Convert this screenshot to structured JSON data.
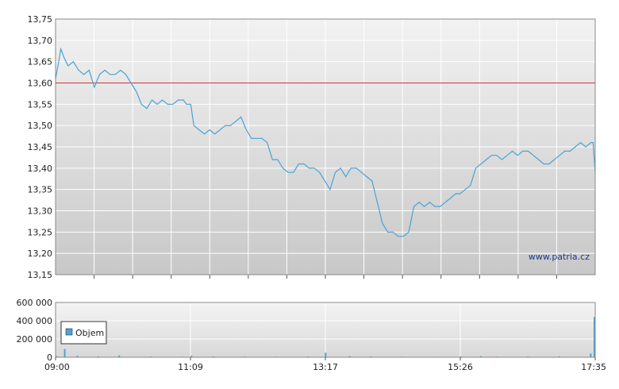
{
  "watermark": "www.patria.cz",
  "chart_data": [
    {
      "type": "line",
      "name": "price",
      "ylim": [
        13.15,
        13.75
      ],
      "yticks": [
        "13,75",
        "13,70",
        "13,65",
        "13,60",
        "13,55",
        "13,50",
        "13,45",
        "13,40",
        "13,35",
        "13,30",
        "13,25",
        "13,20",
        "13,15"
      ],
      "reference_line": {
        "value": 13.6,
        "color": "#cc3333"
      },
      "x_range": [
        "09:00",
        "17:35"
      ],
      "line_color": "#4aa3d4",
      "grid": true,
      "series": [
        {
          "x": [
            "09:00",
            "09:03",
            "09:05",
            "09:08",
            "09:12",
            "09:17",
            "09:22",
            "09:27",
            "09:32",
            "09:37",
            "09:42",
            "09:47",
            "09:52",
            "09:57",
            "10:02",
            "10:07",
            "10:12",
            "10:17",
            "10:22",
            "10:27",
            "10:32",
            "10:37",
            "10:42",
            "10:47",
            "10:52",
            "10:57",
            "11:02",
            "11:05",
            "11:09",
            "11:12",
            "11:17",
            "11:22",
            "11:27",
            "11:32",
            "11:37",
            "11:42",
            "11:47",
            "11:52",
            "11:57",
            "12:02",
            "12:07",
            "12:12",
            "12:17",
            "12:22",
            "12:27",
            "12:32",
            "12:37",
            "12:42",
            "12:47",
            "12:52",
            "12:57",
            "13:02",
            "13:07",
            "13:12",
            "13:17",
            "13:22",
            "13:27",
            "13:32",
            "13:37",
            "13:42",
            "13:47",
            "13:52",
            "13:57",
            "14:02",
            "14:07",
            "14:12",
            "14:17",
            "14:22",
            "14:27",
            "14:32",
            "14:37",
            "14:42",
            "14:47",
            "14:52",
            "14:57",
            "15:02",
            "15:07",
            "15:12",
            "15:17",
            "15:22",
            "15:26",
            "15:31",
            "15:36",
            "15:41",
            "15:46",
            "15:51",
            "15:56",
            "16:01",
            "16:06",
            "16:11",
            "16:16",
            "16:21",
            "16:26",
            "16:31",
            "16:36",
            "16:41",
            "16:46",
            "16:51",
            "16:56",
            "17:01",
            "17:06",
            "17:11",
            "17:16",
            "17:21",
            "17:26",
            "17:31",
            "17:33",
            "17:35"
          ],
          "values": [
            13.61,
            13.65,
            13.68,
            13.66,
            13.64,
            13.65,
            13.63,
            13.62,
            13.63,
            13.59,
            13.62,
            13.63,
            13.62,
            13.62,
            13.63,
            13.62,
            13.6,
            13.58,
            13.55,
            13.54,
            13.56,
            13.55,
            13.56,
            13.55,
            13.55,
            13.56,
            13.56,
            13.55,
            13.55,
            13.5,
            13.49,
            13.48,
            13.49,
            13.48,
            13.49,
            13.5,
            13.5,
            13.51,
            13.52,
            13.49,
            13.47,
            13.47,
            13.47,
            13.46,
            13.42,
            13.42,
            13.4,
            13.39,
            13.39,
            13.41,
            13.41,
            13.4,
            13.4,
            13.39,
            13.37,
            13.35,
            13.39,
            13.4,
            13.38,
            13.4,
            13.4,
            13.39,
            13.38,
            13.37,
            13.32,
            13.27,
            13.25,
            13.25,
            13.24,
            13.24,
            13.25,
            13.31,
            13.32,
            13.31,
            13.32,
            13.31,
            13.31,
            13.32,
            13.33,
            13.34,
            13.34,
            13.35,
            13.36,
            13.4,
            13.41,
            13.42,
            13.43,
            13.43,
            13.42,
            13.43,
            13.44,
            13.43,
            13.44,
            13.44,
            13.43,
            13.42,
            13.41,
            13.41,
            13.42,
            13.43,
            13.44,
            13.44,
            13.45,
            13.46,
            13.45,
            13.46,
            13.46,
            13.39
          ]
        }
      ]
    },
    {
      "type": "bar",
      "name": "volume",
      "legend": "Objem",
      "legend_color": "#4aa3d4",
      "ylim": [
        0,
        600000
      ],
      "yticks": [
        "600 000",
        "400 000",
        "200 000",
        "0"
      ],
      "xticks": [
        "09:00",
        "11:09",
        "13:17",
        "15:26",
        "17:35"
      ],
      "bar_color": "#4aa3d4",
      "grid": true,
      "series": [
        {
          "x": [
            "09:00",
            "09:08",
            "09:20",
            "09:40",
            "10:00",
            "10:30",
            "11:00",
            "11:09",
            "11:30",
            "12:00",
            "12:30",
            "13:00",
            "13:17",
            "13:40",
            "14:00",
            "14:30",
            "15:00",
            "15:26",
            "15:45",
            "16:00",
            "16:30",
            "17:00",
            "17:30",
            "17:35"
          ],
          "values": [
            12000,
            90000,
            15000,
            10000,
            20000,
            8000,
            6000,
            18000,
            9000,
            7000,
            6000,
            8000,
            50000,
            12000,
            9000,
            6000,
            5000,
            9000,
            12000,
            7000,
            8000,
            10000,
            40000,
            440000
          ]
        }
      ]
    }
  ]
}
